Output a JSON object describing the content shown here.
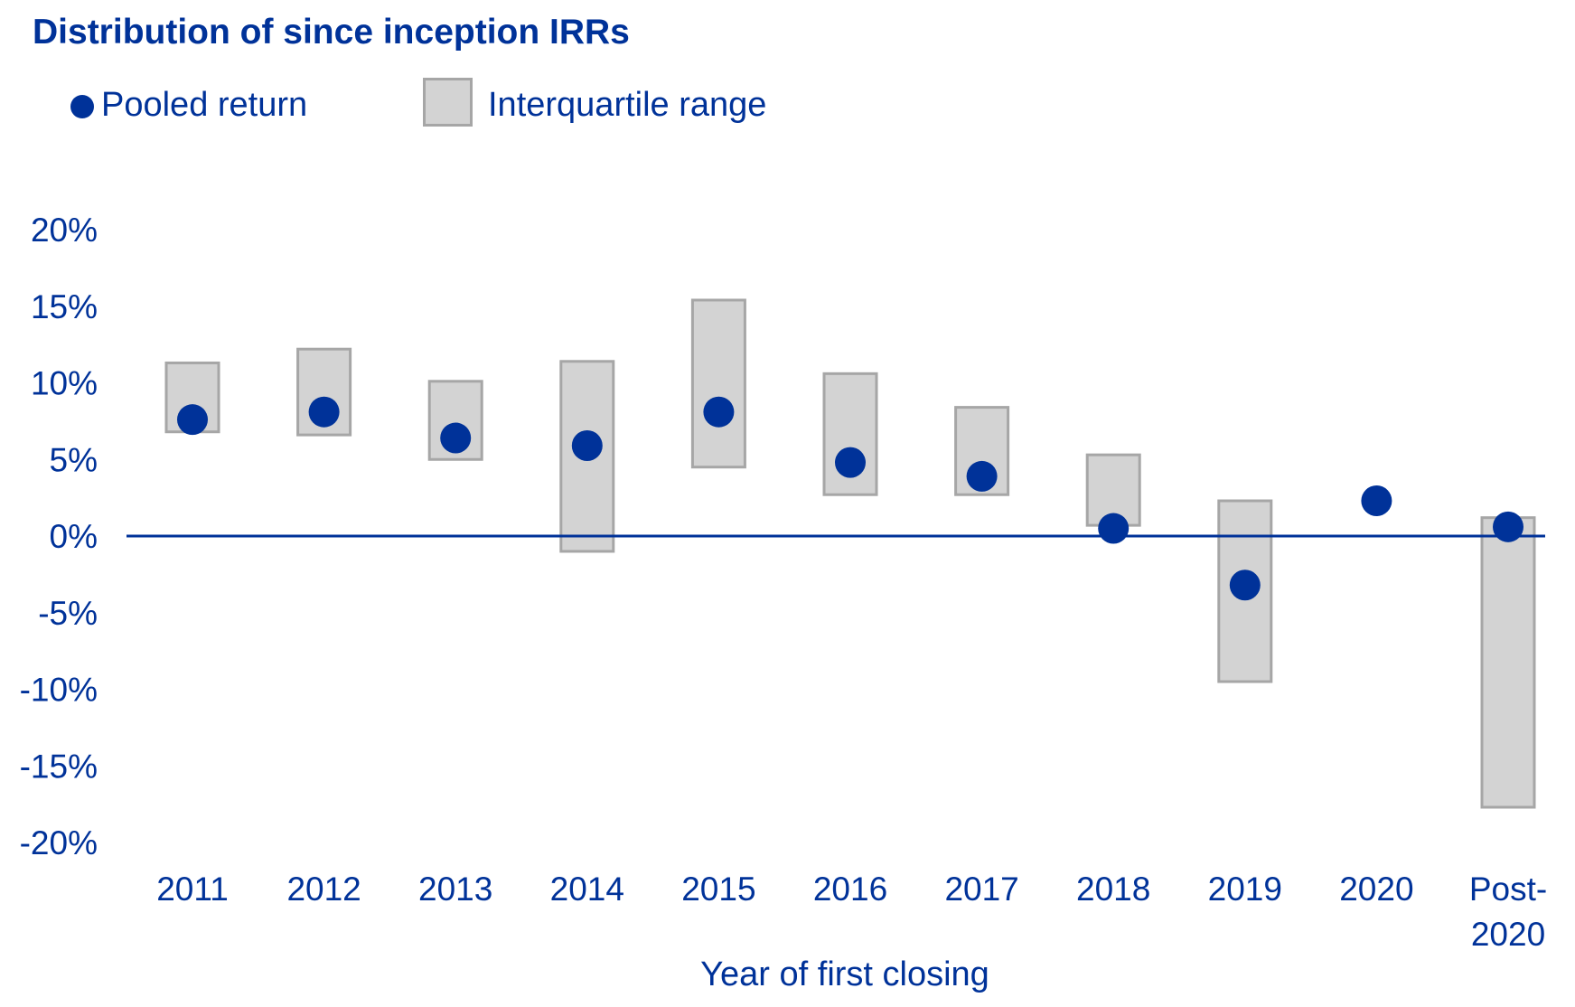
{
  "chart_data": {
    "type": "scatter",
    "title": "Distribution of since inception IRRs",
    "xlabel": "Year of first closing",
    "ylabel": "",
    "ylim": [
      -20,
      20
    ],
    "y_ticks": [
      "20%",
      "15%",
      "10%",
      "5%",
      "0%",
      "-5%",
      "-10%",
      "-15%",
      "-20%"
    ],
    "y_tick_values": [
      20,
      15,
      10,
      5,
      0,
      -5,
      -10,
      -15,
      -20
    ],
    "categories": [
      "2011",
      "2012",
      "2013",
      "2014",
      "2015",
      "2016",
      "2017",
      "2018",
      "2019",
      "2020",
      "Post-2020"
    ],
    "category_labels": [
      [
        "2011"
      ],
      [
        "2012"
      ],
      [
        "2013"
      ],
      [
        "2014"
      ],
      [
        "2015"
      ],
      [
        "2016"
      ],
      [
        "2017"
      ],
      [
        "2018"
      ],
      [
        "2019"
      ],
      [
        "2020"
      ],
      [
        "Post-",
        "2020"
      ]
    ],
    "legend": {
      "placement": "top-left",
      "entries": [
        "Pooled return",
        "Interquartile range"
      ]
    },
    "series": [
      {
        "name": "Pooled return",
        "marker": "dot",
        "color": "#003299",
        "values": [
          7.6,
          8.1,
          6.4,
          5.9,
          8.1,
          4.8,
          3.9,
          0.5,
          -3.2,
          2.3,
          0.6
        ]
      },
      {
        "name": "Interquartile range",
        "marker": "box",
        "color": "#d3d3d3",
        "border_color": "#a6a6a6",
        "low": [
          6.8,
          6.6,
          5.0,
          -1.0,
          4.5,
          2.7,
          2.7,
          0.7,
          -9.5,
          null,
          -17.7
        ],
        "high": [
          11.3,
          12.2,
          10.1,
          11.4,
          15.4,
          10.6,
          8.4,
          5.3,
          2.3,
          null,
          1.2
        ]
      }
    ],
    "zero_line_color": "#003299",
    "grid": false
  }
}
